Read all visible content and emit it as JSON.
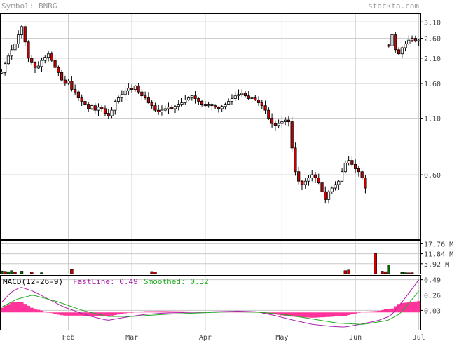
{
  "header": {
    "symbol_label": "Symbol: BNRG",
    "brand": "stockta.com"
  },
  "colors": {
    "up": "#ffffff",
    "down": "#cc0000",
    "vol_up": "#006600",
    "vol_down": "#cc0000",
    "grid": "#c8c8c8",
    "fast": "#aa22aa",
    "smoothed": "#22aa22",
    "hist": "#ff3399",
    "header_text": "#999999"
  },
  "chart_data": [
    {
      "type": "candlestick",
      "scale": "log",
      "ylim": [
        0.3,
        3.4
      ],
      "y_ticks": [
        {
          "value": 3.1,
          "label": "3.10"
        },
        {
          "value": 2.6,
          "label": "2.60"
        },
        {
          "value": 2.1,
          "label": "2.10"
        },
        {
          "value": 1.6,
          "label": "1.60"
        },
        {
          "value": 1.1,
          "label": "1.10"
        },
        {
          "value": 0.6,
          "label": "0.60"
        }
      ],
      "x_ticks": [
        {
          "label": "Feb",
          "index": 20
        },
        {
          "label": "Mar",
          "index": 39
        },
        {
          "label": "Apr",
          "index": 61
        },
        {
          "label": "May",
          "index": 84
        },
        {
          "label": "Jun",
          "index": 106
        },
        {
          "label": "Jul",
          "index": 125
        }
      ],
      "n_bars": 126,
      "segments": [
        {
          "start": 0,
          "closes": [
            1.8,
            1.98,
            2.15,
            2.3,
            2.45,
            2.7,
            2.95,
            2.5,
            2.1,
            2.0,
            1.9,
            1.92,
            2.05,
            2.12,
            2.2,
            2.05,
            1.9,
            1.8,
            1.66,
            1.6,
            1.64,
            1.5,
            1.46,
            1.38,
            1.32,
            1.28,
            1.22,
            1.26,
            1.2,
            1.24,
            1.22,
            1.16,
            1.13,
            1.2,
            1.32,
            1.38,
            1.42,
            1.48,
            1.52,
            1.5,
            1.56,
            1.46,
            1.4,
            1.38,
            1.3,
            1.26,
            1.2,
            1.18,
            1.2,
            1.22,
            1.24,
            1.22,
            1.25,
            1.28,
            1.3,
            1.34,
            1.38,
            1.4,
            1.36,
            1.32,
            1.28,
            1.26,
            1.28,
            1.26,
            1.24,
            1.22,
            1.25,
            1.28,
            1.32,
            1.36,
            1.4,
            1.42,
            1.44,
            1.4,
            1.36,
            1.38,
            1.34,
            1.3,
            1.26,
            1.2,
            1.1,
            1.04,
            1.02,
            1.04,
            1.06,
            1.08,
            1.06,
            0.8,
            0.62,
            0.56,
            0.54,
            0.56,
            0.58,
            0.6,
            0.58,
            0.55,
            0.5,
            0.46,
            0.5,
            0.52,
            0.54,
            0.56,
            0.62,
            0.68,
            0.7,
            0.67,
            0.64,
            0.62,
            0.58,
            0.52
          ]
        },
        {
          "start": 116,
          "closes": [
            2.4,
            2.7,
            2.3,
            2.2,
            2.35,
            2.45,
            2.55,
            2.6,
            2.52,
            2.55
          ]
        }
      ]
    },
    {
      "type": "bar",
      "name": "volume",
      "y_ticks": [
        {
          "value": 17.76,
          "label": "17.76 M"
        },
        {
          "value": 11.84,
          "label": "11.84 M"
        },
        {
          "value": 5.92,
          "label": "5.92 M"
        }
      ],
      "ylim": [
        0,
        20
      ],
      "bars": [
        {
          "index": 0,
          "value": 1.6,
          "dir": "up"
        },
        {
          "index": 1,
          "value": 1.4,
          "dir": "down"
        },
        {
          "index": 2,
          "value": 1.2,
          "dir": "up"
        },
        {
          "index": 3,
          "value": 1.8,
          "dir": "up"
        },
        {
          "index": 4,
          "value": 0.8,
          "dir": "down"
        },
        {
          "index": 6,
          "value": 1.5,
          "dir": "up"
        },
        {
          "index": 9,
          "value": 1.0,
          "dir": "down"
        },
        {
          "index": 12,
          "value": 0.6,
          "dir": "up"
        },
        {
          "index": 21,
          "value": 2.4,
          "dir": "down"
        },
        {
          "index": 45,
          "value": 1.3,
          "dir": "down"
        },
        {
          "index": 46,
          "value": 1.0,
          "dir": "down"
        },
        {
          "index": 103,
          "value": 1.8,
          "dir": "down"
        },
        {
          "index": 104,
          "value": 2.2,
          "dir": "down"
        },
        {
          "index": 112,
          "value": 12.0,
          "dir": "down"
        },
        {
          "index": 114,
          "value": 1.5,
          "dir": "down"
        },
        {
          "index": 115,
          "value": 1.2,
          "dir": "down"
        },
        {
          "index": 116,
          "value": 5.2,
          "dir": "up"
        },
        {
          "index": 120,
          "value": 0.8,
          "dir": "up"
        },
        {
          "index": 121,
          "value": 0.6,
          "dir": "up"
        },
        {
          "index": 122,
          "value": 0.5,
          "dir": "down"
        },
        {
          "index": 123,
          "value": 0.6,
          "dir": "down"
        },
        {
          "index": 130,
          "value": 0.9,
          "dir": "down"
        }
      ]
    },
    {
      "type": "line",
      "name": "macd",
      "label": "MACD(12-26-9)",
      "fast_label": "FastLine: 0.49",
      "smoothed_label": "Smoothed: 0.32",
      "ylim": [
        -0.26,
        0.56
      ],
      "y_ticks": [
        {
          "value": 0.49,
          "label": "0.49"
        },
        {
          "value": 0.26,
          "label": "0.26"
        },
        {
          "value": 0.03,
          "label": "0.03"
        }
      ],
      "fast_keys": [
        [
          0,
          0.15
        ],
        [
          3,
          0.3
        ],
        [
          6,
          0.38
        ],
        [
          10,
          0.32
        ],
        [
          15,
          0.2
        ],
        [
          20,
          0.08
        ],
        [
          28,
          -0.05
        ],
        [
          34,
          -0.12
        ],
        [
          40,
          -0.07
        ],
        [
          46,
          -0.03
        ],
        [
          52,
          -0.01
        ],
        [
          60,
          0.0
        ],
        [
          68,
          0.01
        ],
        [
          76,
          0.02
        ],
        [
          82,
          0.01
        ],
        [
          88,
          -0.05
        ],
        [
          94,
          -0.12
        ],
        [
          100,
          -0.18
        ],
        [
          106,
          -0.21
        ],
        [
          110,
          -0.22
        ],
        [
          115,
          -0.18
        ],
        [
          121,
          -0.12
        ],
        [
          125,
          -0.05
        ],
        [
          128,
          0.12
        ],
        [
          131,
          0.3
        ],
        [
          134,
          0.49
        ]
      ],
      "smoothed_keys": [
        [
          0,
          0.08
        ],
        [
          5,
          0.2
        ],
        [
          10,
          0.26
        ],
        [
          18,
          0.16
        ],
        [
          26,
          0.03
        ],
        [
          34,
          -0.06
        ],
        [
          42,
          -0.06
        ],
        [
          52,
          -0.03
        ],
        [
          62,
          -0.01
        ],
        [
          74,
          0.01
        ],
        [
          84,
          0.0
        ],
        [
          92,
          -0.04
        ],
        [
          100,
          -0.1
        ],
        [
          108,
          -0.16
        ],
        [
          116,
          -0.18
        ],
        [
          124,
          -0.12
        ],
        [
          128,
          -0.02
        ],
        [
          131,
          0.15
        ],
        [
          134,
          0.32
        ]
      ]
    }
  ]
}
